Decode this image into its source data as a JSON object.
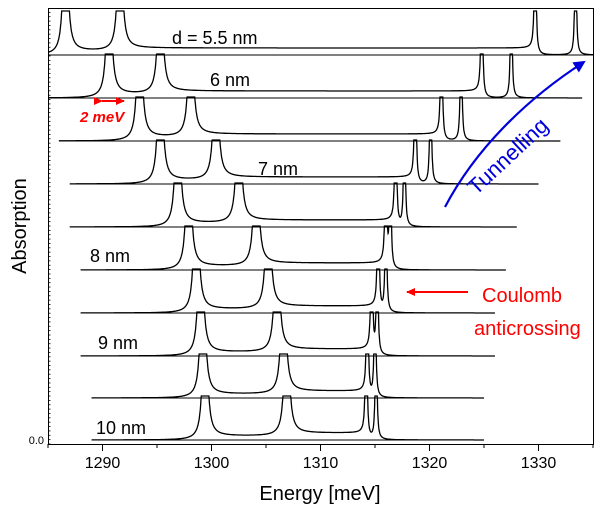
{
  "chart_data": {
    "type": "line",
    "title": "",
    "xlabel": "Energy [meV]",
    "ylabel": "Absorption",
    "xlim": [
      1285,
      1335
    ],
    "xticks": [
      1290,
      1300,
      1310,
      1320,
      1330
    ],
    "y_tick_label": "0.0",
    "grid": false,
    "series": [
      {
        "label": "10 nm",
        "peaks": [
          1299.4,
          1306.9,
          1314.2,
          1315.1
        ],
        "range": [
          1289,
          1325
        ]
      },
      {
        "label": "",
        "peaks": [
          1299.2,
          1306.6,
          1314.3,
          1315.0
        ],
        "range": [
          1289,
          1325
        ]
      },
      {
        "label": "9 nm",
        "peaks": [
          1299.0,
          1306.0,
          1314.7,
          1315.2
        ],
        "range": [
          1288,
          1326
        ]
      },
      {
        "label": "",
        "peaks": [
          1298.6,
          1305.2,
          1315.3,
          1316.0
        ],
        "range": [
          1288,
          1326
        ]
      },
      {
        "label": "8 nm",
        "peaks": [
          1297.9,
          1304.1,
          1316.0,
          1316.4
        ],
        "range": [
          1288,
          1327
        ]
      },
      {
        "label": "",
        "peaks": [
          1296.9,
          1302.5,
          1316.9,
          1317.7
        ],
        "range": [
          1287,
          1328
        ]
      },
      {
        "label": "7 nm",
        "peaks": [
          1295.3,
          1300.4,
          1318.7,
          1320.1
        ],
        "range": [
          1287,
          1330
        ]
      },
      {
        "label": "",
        "peaks": [
          1293.4,
          1298.1,
          1321.1,
          1322.9
        ],
        "range": [
          1286,
          1332
        ]
      },
      {
        "label": "6 nm",
        "peaks": [
          1290.6,
          1295.3,
          1324.8,
          1327.5
        ],
        "range": [
          1285,
          1334
        ]
      },
      {
        "label": "d = 5.5 nm",
        "peaks": [
          1286.6,
          1291.6,
          1329.7,
          1333.4
        ],
        "range": [
          1285,
          1335
        ]
      }
    ],
    "annotations": {
      "scale_bar": "2 meV",
      "coulomb": [
        "Coulomb",
        "anticrossing"
      ],
      "tunnelling": "Tunnelling"
    },
    "colors": {
      "annotation_red": "#ff0000",
      "tunnelling_blue": "#0000dd",
      "curves": "#000000"
    }
  }
}
